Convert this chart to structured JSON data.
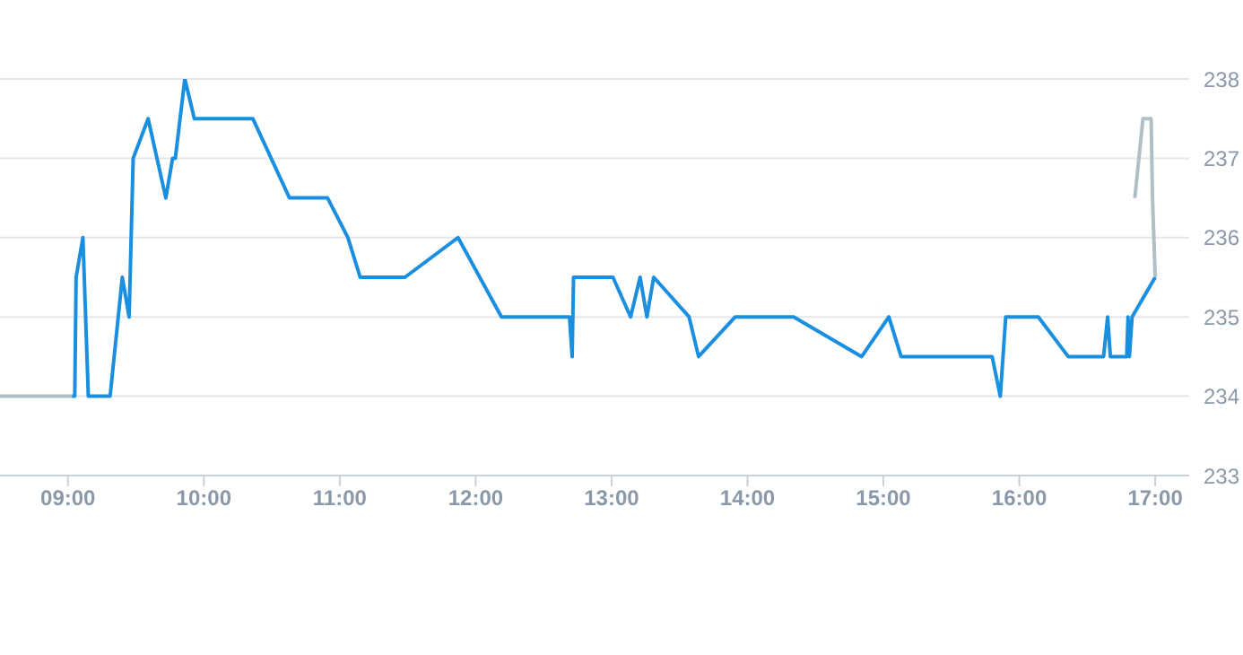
{
  "chart_data": {
    "type": "line",
    "xlim": [
      8.5,
      17.25
    ],
    "ylim": [
      233,
      238
    ],
    "xticks": [
      {
        "value": 9,
        "label": "09:00"
      },
      {
        "value": 10,
        "label": "10:00"
      },
      {
        "value": 11,
        "label": "11:00"
      },
      {
        "value": 12,
        "label": "12:00"
      },
      {
        "value": 13,
        "label": "13:00"
      },
      {
        "value": 14,
        "label": "14:00"
      },
      {
        "value": 15,
        "label": "15:00"
      },
      {
        "value": 16,
        "label": "16:00"
      },
      {
        "value": 17,
        "label": "17:00"
      }
    ],
    "yticks": [
      233,
      234,
      235,
      236,
      237,
      238
    ],
    "grid": "y",
    "line_style": "solid",
    "series": [
      {
        "color": "#b0bec5",
        "x": [
          8.5,
          9.03
        ],
        "values": [
          234,
          234
        ]
      },
      {
        "color": "#1a8fe0",
        "x": [
          9.03,
          9.05,
          9.06,
          9.11,
          9.15,
          9.31,
          9.4,
          9.45,
          9.48,
          9.59,
          9.72,
          9.77,
          9.79,
          9.86,
          9.93,
          10.36,
          10.63,
          10.91,
          11.06,
          11.15,
          11.48,
          11.87,
          12.19,
          12.69,
          12.71,
          12.72,
          13.01,
          13.14,
          13.21,
          13.26,
          13.31,
          13.57,
          13.64,
          13.91,
          14.34,
          14.84,
          15.04,
          15.13,
          15.8,
          15.86,
          15.9,
          16.14,
          16.36,
          16.62,
          16.65,
          16.67,
          16.79,
          16.8,
          16.81,
          16.83,
          17.0
        ],
        "values": [
          234,
          234,
          235.5,
          236,
          234,
          234,
          235.5,
          235,
          237,
          237.5,
          236.5,
          237,
          237,
          238,
          237.5,
          237.5,
          236.5,
          236.5,
          236,
          235.5,
          235.5,
          236,
          235,
          235,
          234.5,
          235.5,
          235.5,
          235,
          235.5,
          235,
          235.5,
          235,
          234.5,
          235,
          235,
          234.5,
          235,
          234.5,
          234.5,
          234,
          235,
          235,
          234.5,
          234.5,
          235,
          234.5,
          234.5,
          235,
          234.5,
          235,
          235.5
        ]
      },
      {
        "color": "#b0bec5",
        "x": [
          16.85,
          16.91,
          16.97,
          16.98,
          17.0
        ],
        "values": [
          236.5,
          237.5,
          237.5,
          236.5,
          235.5
        ]
      }
    ]
  }
}
